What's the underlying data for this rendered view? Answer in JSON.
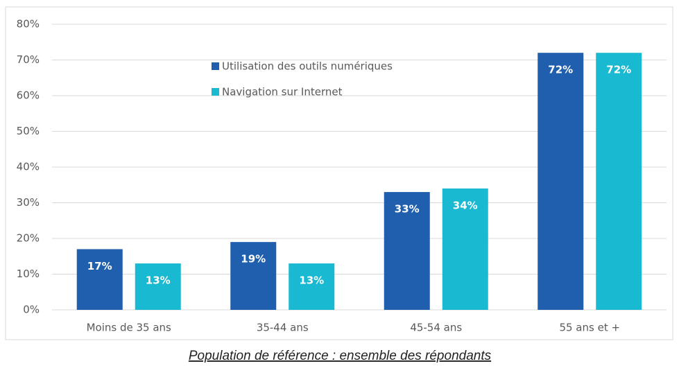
{
  "chart_data": {
    "type": "bar",
    "caption": "Population de référence : ensemble des répondants",
    "categories": [
      "Moins de 35 ans",
      "35-44 ans",
      "45-54 ans",
      "55 ans et +"
    ],
    "series": [
      {
        "name": "Utilisation des outils numériques",
        "color": "#1f5fad",
        "values": [
          17,
          19,
          33,
          72
        ],
        "value_labels": [
          "17%",
          "19%",
          "33%",
          "72%"
        ]
      },
      {
        "name": "Navigation sur Internet",
        "color": "#18b9d1",
        "values": [
          13,
          13,
          34,
          72
        ],
        "value_labels": [
          "13%",
          "13%",
          "34%",
          "72%"
        ]
      }
    ],
    "ylim": [
      0,
      80
    ],
    "yticks": [
      {
        "value": 0,
        "label": "0%"
      },
      {
        "value": 10,
        "label": "10%"
      },
      {
        "value": 20,
        "label": "20%"
      },
      {
        "value": 30,
        "label": "30%"
      },
      {
        "value": 40,
        "label": "40%"
      },
      {
        "value": 50,
        "label": "50%"
      },
      {
        "value": 60,
        "label": "60%"
      },
      {
        "value": 70,
        "label": "70%"
      },
      {
        "value": 80,
        "label": "80%"
      }
    ],
    "grid": true,
    "legend": "top"
  }
}
